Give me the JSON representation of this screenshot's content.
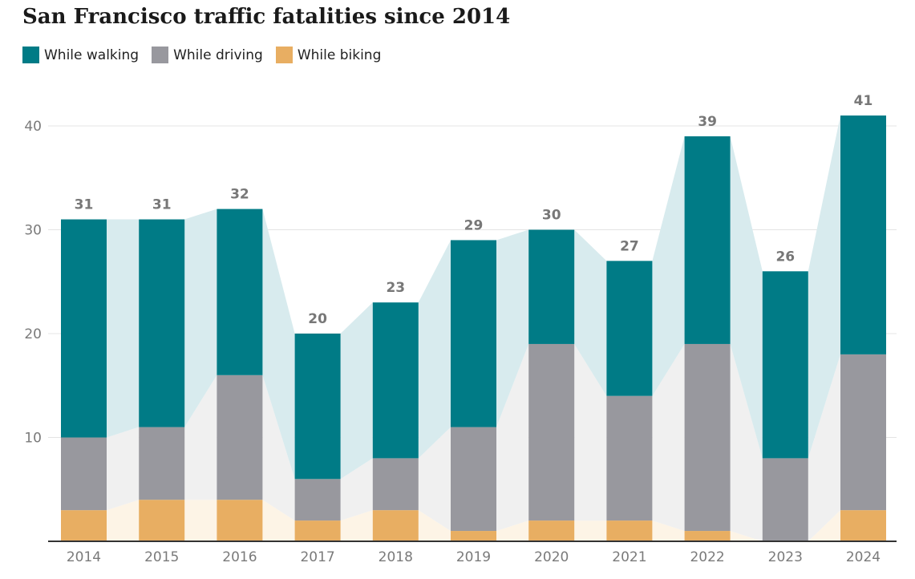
{
  "title": "San Francisco traffic fatalities since 2014",
  "legend": [
    {
      "label": "While walking",
      "color": "#007b86"
    },
    {
      "label": "While driving",
      "color": "#98989e"
    },
    {
      "label": "While biking",
      "color": "#e8ae62"
    }
  ],
  "chart_data": {
    "type": "bar",
    "stacked": true,
    "title": "San Francisco traffic fatalities since 2014",
    "xlabel": "",
    "ylabel": "",
    "categories": [
      "2014",
      "2015",
      "2016",
      "2017",
      "2018",
      "2019",
      "2020",
      "2021",
      "2022",
      "2023",
      "2024"
    ],
    "series": [
      {
        "name": "While biking",
        "color": "#e8ae62",
        "area_color": "#fdf4e6",
        "values": [
          3,
          4,
          4,
          2,
          3,
          1,
          2,
          2,
          1,
          0,
          3
        ]
      },
      {
        "name": "While driving",
        "color": "#98989e",
        "area_color": "#f0f0f0",
        "values": [
          7,
          7,
          12,
          4,
          5,
          10,
          17,
          12,
          18,
          8,
          15
        ]
      },
      {
        "name": "While walking",
        "color": "#007b86",
        "area_color": "#d8ebee",
        "values": [
          21,
          20,
          16,
          14,
          15,
          18,
          11,
          13,
          20,
          18,
          23
        ]
      }
    ],
    "totals": [
      31,
      31,
      32,
      20,
      23,
      29,
      30,
      27,
      39,
      26,
      41
    ],
    "yticks": [
      10,
      20,
      30,
      40
    ],
    "ylim": [
      0,
      44
    ],
    "grid": true,
    "legend_position": "top-left"
  }
}
